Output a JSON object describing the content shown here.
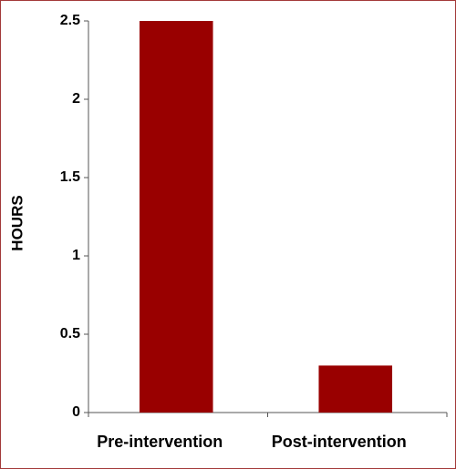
{
  "chart_data": {
    "type": "bar",
    "y_label": "HOURS",
    "categories": [
      "Pre-intervention",
      "Post-intervention"
    ],
    "values": [
      2.5,
      0.3
    ],
    "color": "#990000",
    "ylim": [
      0,
      2.5
    ],
    "yticks": [
      0,
      0.5,
      1,
      1.5,
      2,
      2.5
    ],
    "grid": false
  }
}
